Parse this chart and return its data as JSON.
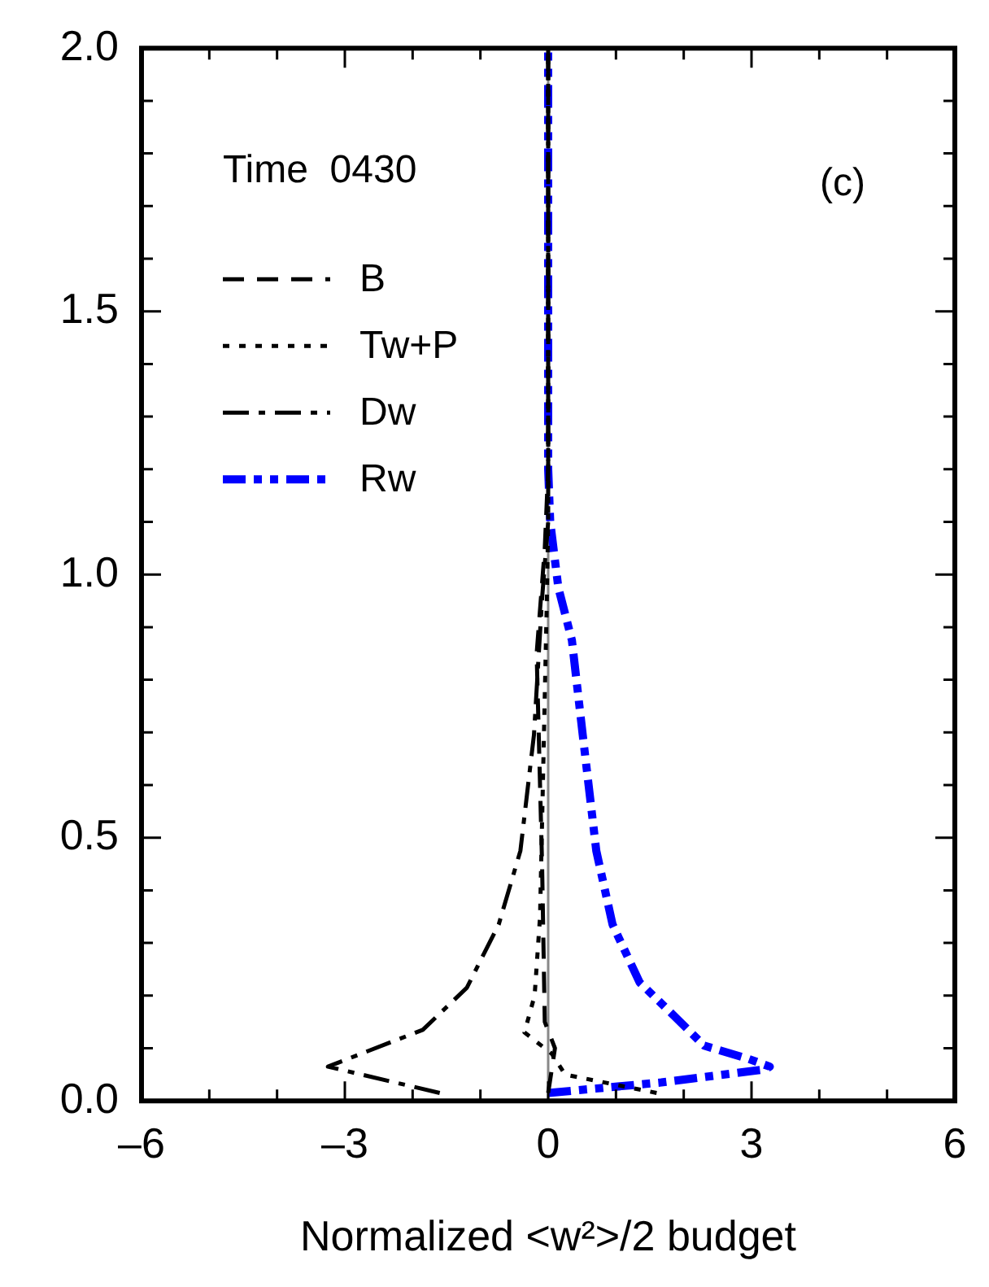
{
  "chart_data": {
    "type": "line",
    "xlabel": "Normalized <w²>/2 budget",
    "annotations": [
      "Time  0430",
      "(c)"
    ],
    "xlim": [
      -6,
      6
    ],
    "xticks": [
      {
        "value": -6,
        "label": "–6"
      },
      {
        "value": -5,
        "label": null
      },
      {
        "value": -4,
        "label": null
      },
      {
        "value": -3,
        "label": "–3"
      },
      {
        "value": -2,
        "label": null
      },
      {
        "value": -1,
        "label": null
      },
      0,
      {
        "value": 1,
        "label": null
      },
      {
        "value": 2,
        "label": null
      },
      3,
      {
        "value": 4,
        "label": null
      },
      {
        "value": 5,
        "label": null
      },
      6
    ],
    "ylim": [
      0,
      2
    ],
    "yticks": [
      {
        "value": 0,
        "label": "0.0"
      },
      {
        "value": 0.1,
        "label": null
      },
      {
        "value": 0.2,
        "label": null
      },
      {
        "value": 0.3,
        "label": null
      },
      {
        "value": 0.4,
        "label": null
      },
      0.5,
      {
        "value": 0.6,
        "label": null
      },
      {
        "value": 0.7,
        "label": null
      },
      {
        "value": 0.8,
        "label": null
      },
      {
        "value": 0.9,
        "label": null
      },
      {
        "value": 1,
        "label": "1.0"
      },
      {
        "value": 1.1,
        "label": null
      },
      {
        "value": 1.2,
        "label": null
      },
      {
        "value": 1.3,
        "label": null
      },
      {
        "value": 1.4,
        "label": null
      },
      1.5,
      {
        "value": 1.6,
        "label": null
      },
      {
        "value": 1.7,
        "label": null
      },
      {
        "value": 1.8,
        "label": null
      },
      {
        "value": 1.9,
        "label": null
      },
      {
        "value": 2,
        "label": "2.0"
      }
    ],
    "grid": false,
    "legend": "top left",
    "marker": "none",
    "ref_lines": [
      {
        "axis": "x",
        "value": 0,
        "color": "#888888"
      }
    ],
    "series": [
      {
        "name": "B",
        "color": "#000000",
        "line_style": "dashed",
        "x": [
          0,
          0.1,
          -0.05,
          -0.09,
          -0.17,
          -0.05,
          0,
          0
        ],
        "values": [
          0.015,
          0.1,
          0.15,
          0.45,
          0.85,
          1.05,
          1.2,
          2
        ]
      },
      {
        "name": "Tw+P",
        "color": "#000000",
        "line_style": "dotted",
        "x": [
          1.6,
          0.25,
          0.05,
          -0.35,
          -0.2,
          -0.12,
          -0.07,
          -0.02,
          0,
          0
        ],
        "values": [
          0.015,
          0.05,
          0.09,
          0.13,
          0.2,
          0.35,
          0.65,
          0.95,
          1.1,
          2
        ]
      },
      {
        "name": "Dw",
        "color": "#000000",
        "line_style": "dashdot",
        "x": [
          -1.6,
          -3.25,
          -1.85,
          -1.2,
          -0.73,
          -0.41,
          -0.21,
          -0.09,
          0,
          0
        ],
        "values": [
          0.015,
          0.065,
          0.135,
          0.215,
          0.335,
          0.475,
          0.695,
          0.955,
          1.1,
          2
        ]
      },
      {
        "name": "Rw",
        "color": "#0000ff",
        "line_style": "dashdotdot",
        "x": [
          0,
          1.67,
          3.2,
          3.27,
          2.95,
          2.3,
          1.83,
          1.35,
          0.95,
          0.71,
          0.51,
          0.35,
          0.15,
          0.03,
          0,
          0
        ],
        "values": [
          0.015,
          0.035,
          0.06,
          0.065,
          0.08,
          0.105,
          0.165,
          0.225,
          0.335,
          0.475,
          0.695,
          0.875,
          0.975,
          1.1,
          1.2,
          2
        ]
      }
    ]
  }
}
